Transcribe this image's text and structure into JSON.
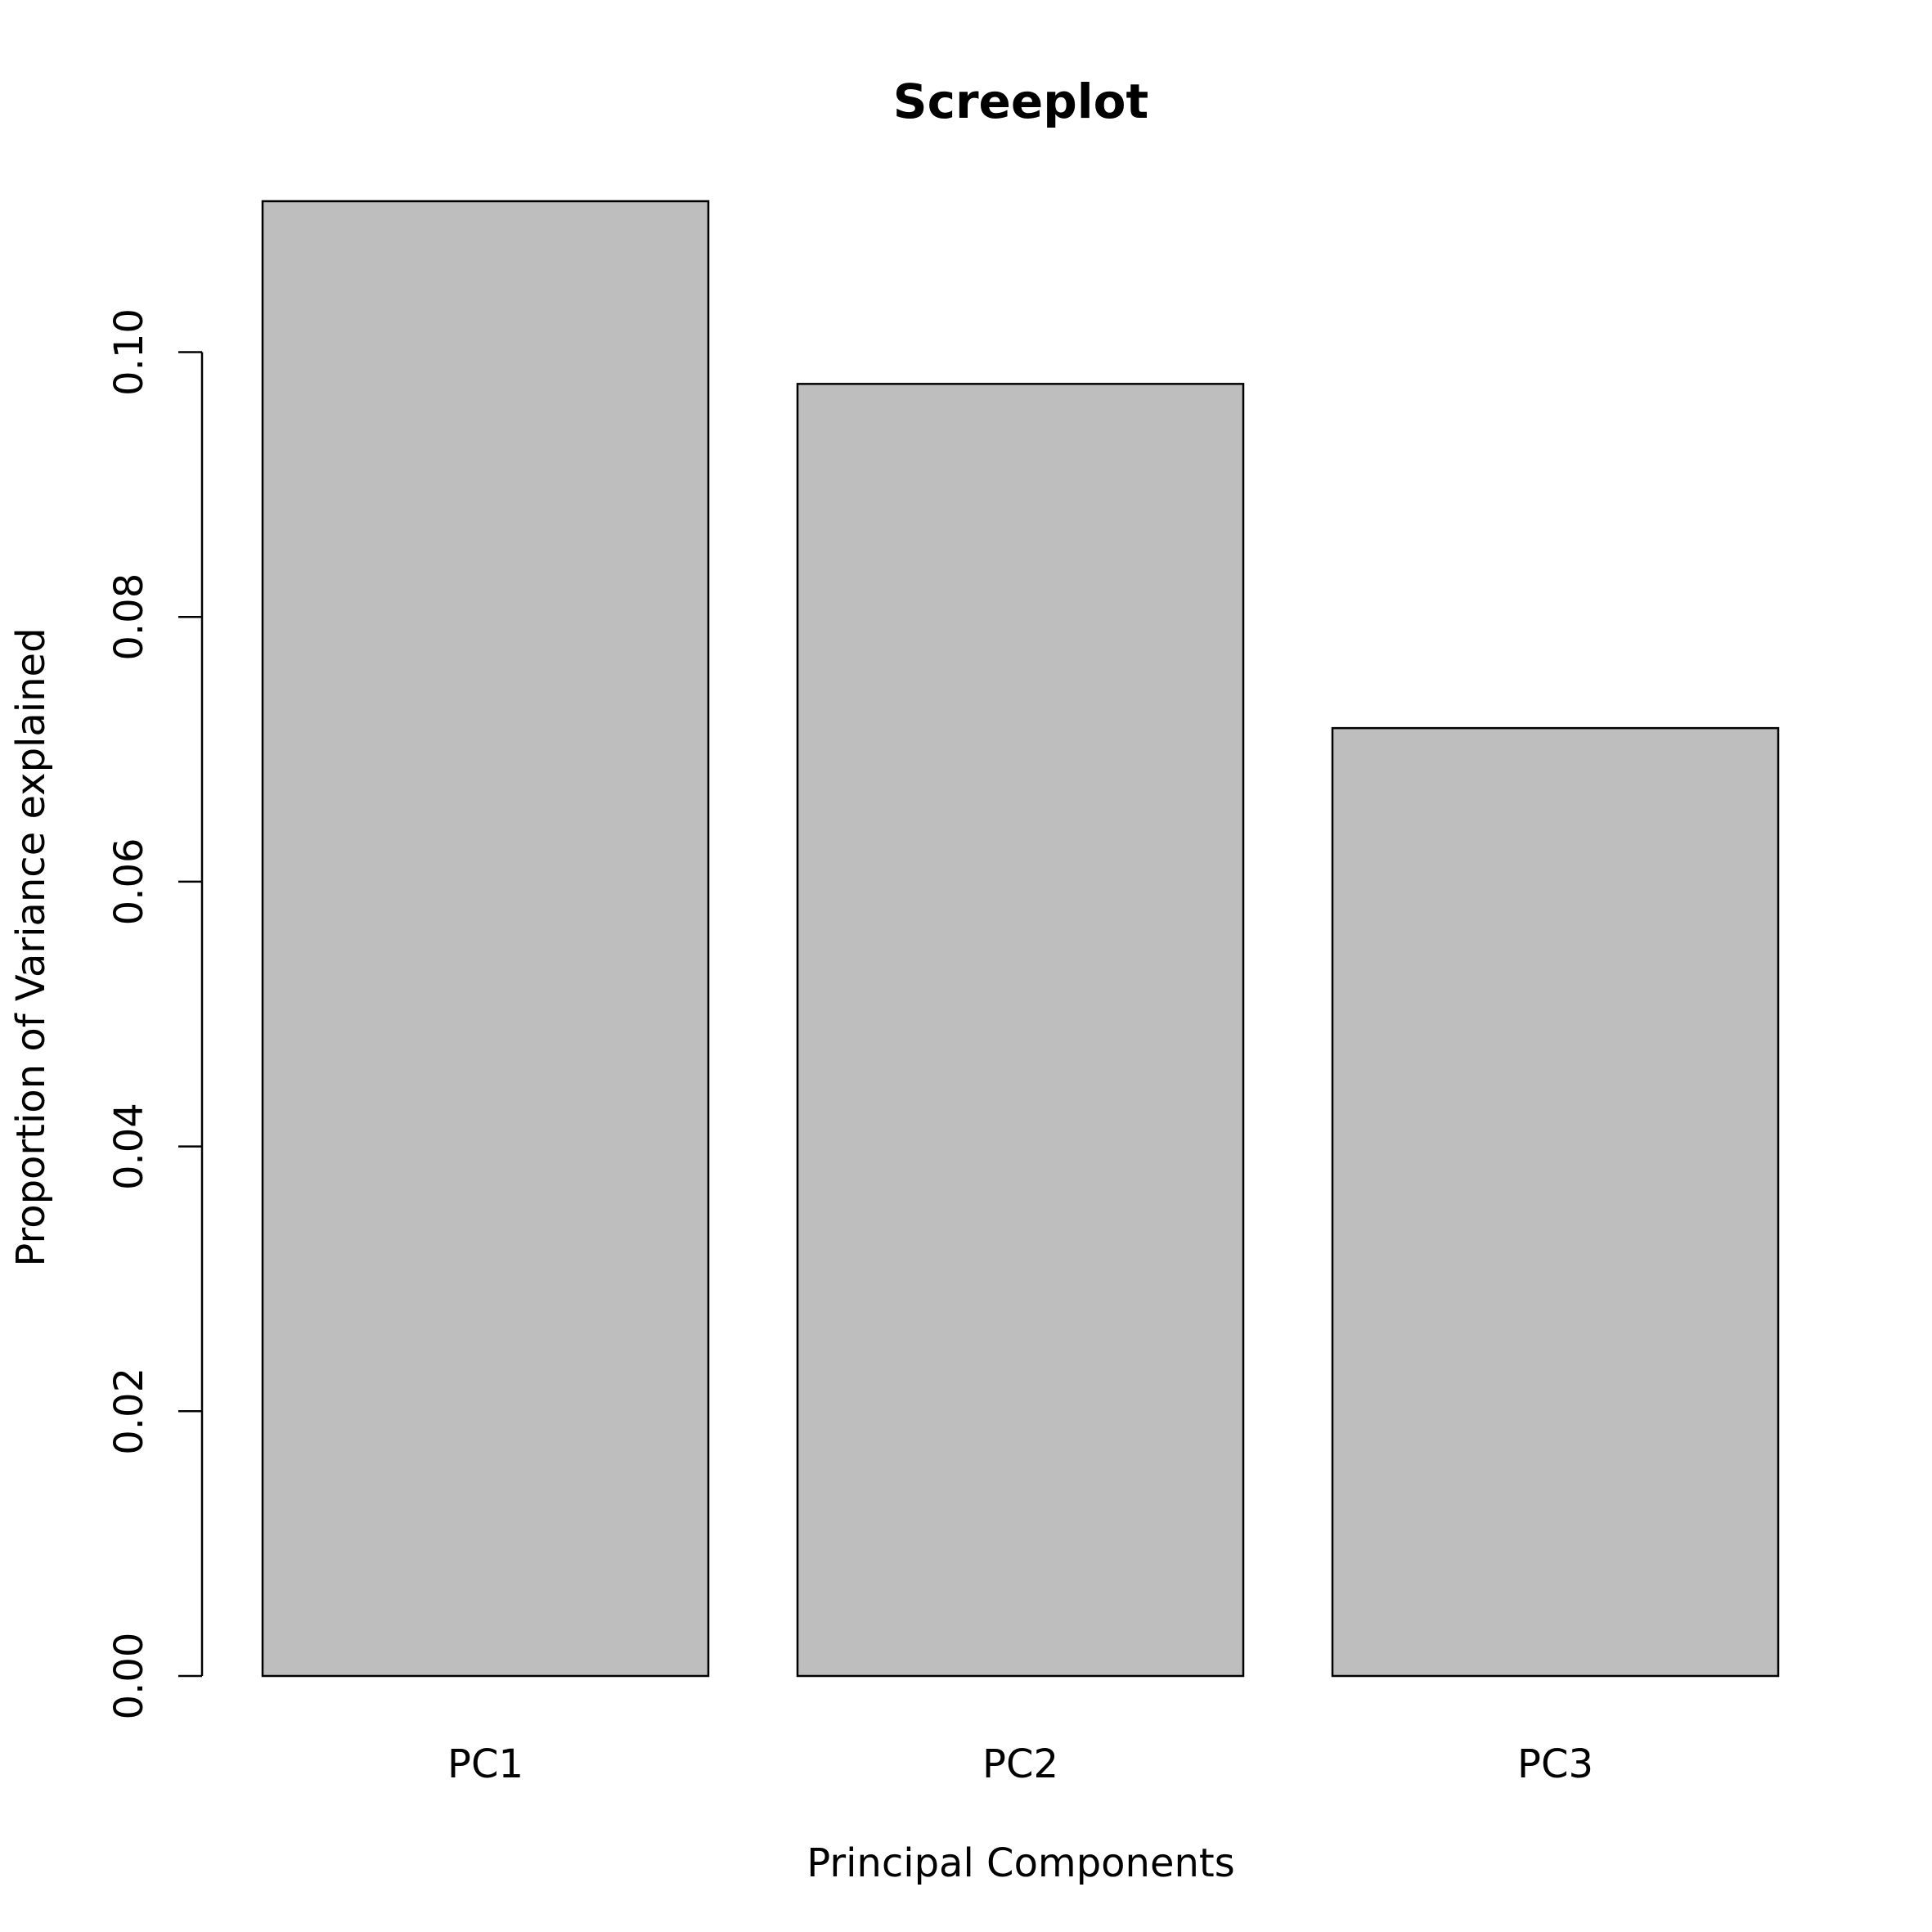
{
  "chart_data": {
    "type": "bar",
    "title": "Screeplot",
    "xlabel": "Principal Components",
    "ylabel": "Proportion of Variance explained",
    "categories": [
      "PC1",
      "PC2",
      "PC3"
    ],
    "values": [
      0.1114,
      0.0976,
      0.0716
    ],
    "ylim": [
      0,
      0.1114
    ],
    "yticks": [
      "0.00",
      "0.02",
      "0.04",
      "0.06",
      "0.08",
      "0.10"
    ],
    "bar_color": "#bebebe",
    "grid": false,
    "legend": "none"
  }
}
